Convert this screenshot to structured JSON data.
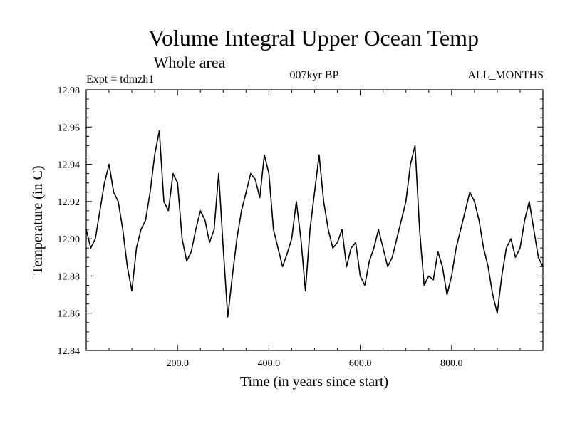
{
  "chart_data": {
    "type": "line",
    "title": "Volume Integral Upper Ocean Temp",
    "subtitle": "Whole area",
    "header_left": "Expt = tdmzh1",
    "header_center": "007kyr BP",
    "header_right": "ALL_MONTHS",
    "xlabel": "Time (in years since start)",
    "ylabel": "Temperature (in C)",
    "xlim": [
      0,
      1000
    ],
    "ylim": [
      12.84,
      12.98
    ],
    "x_ticks": [
      {
        "value": 200,
        "label": "200.0"
      },
      {
        "value": 400,
        "label": "400.0"
      },
      {
        "value": 600,
        "label": "600.0"
      },
      {
        "value": 800,
        "label": "800.0"
      }
    ],
    "y_ticks": [
      {
        "value": 12.84,
        "label": "12.84"
      },
      {
        "value": 12.86,
        "label": "12.86"
      },
      {
        "value": 12.88,
        "label": "12.88"
      },
      {
        "value": 12.9,
        "label": "12.90"
      },
      {
        "value": 12.92,
        "label": "12.92"
      },
      {
        "value": 12.94,
        "label": "12.94"
      },
      {
        "value": 12.96,
        "label": "12.96"
      },
      {
        "value": 12.98,
        "label": "12.98"
      }
    ],
    "grid": false,
    "series": [
      {
        "name": "Temperature",
        "color": "#000000",
        "x": [
          0,
          10,
          20,
          30,
          40,
          50,
          60,
          70,
          80,
          90,
          100,
          110,
          120,
          130,
          140,
          150,
          160,
          170,
          180,
          190,
          200,
          210,
          220,
          230,
          240,
          250,
          260,
          270,
          280,
          290,
          300,
          310,
          320,
          330,
          340,
          350,
          360,
          370,
          380,
          390,
          400,
          410,
          420,
          430,
          440,
          450,
          460,
          470,
          480,
          490,
          500,
          510,
          520,
          530,
          540,
          550,
          560,
          570,
          580,
          590,
          600,
          610,
          620,
          630,
          640,
          650,
          660,
          670,
          680,
          690,
          700,
          710,
          720,
          730,
          740,
          750,
          760,
          770,
          780,
          790,
          800,
          810,
          820,
          830,
          840,
          850,
          860,
          870,
          880,
          890,
          900,
          910,
          920,
          930,
          940,
          950,
          960,
          970,
          980,
          990,
          1000
        ],
        "values": [
          12.905,
          12.895,
          12.9,
          12.915,
          12.93,
          12.94,
          12.925,
          12.92,
          12.905,
          12.885,
          12.872,
          12.895,
          12.905,
          12.91,
          12.925,
          12.945,
          12.958,
          12.92,
          12.915,
          12.935,
          12.93,
          12.9,
          12.888,
          12.893,
          12.905,
          12.915,
          12.91,
          12.898,
          12.905,
          12.935,
          12.895,
          12.858,
          12.88,
          12.9,
          12.915,
          12.925,
          12.935,
          12.932,
          12.922,
          12.945,
          12.935,
          12.905,
          12.895,
          12.885,
          12.892,
          12.9,
          12.92,
          12.9,
          12.872,
          12.905,
          12.925,
          12.945,
          12.92,
          12.905,
          12.895,
          12.898,
          12.905,
          12.885,
          12.895,
          12.898,
          12.88,
          12.875,
          12.888,
          12.895,
          12.905,
          12.895,
          12.885,
          12.89,
          12.9,
          12.91,
          12.92,
          12.94,
          12.95,
          12.905,
          12.875,
          12.88,
          12.878,
          12.893,
          12.885,
          12.87,
          12.88,
          12.895,
          12.905,
          12.915,
          12.925,
          12.92,
          12.91,
          12.895,
          12.885,
          12.87,
          12.86,
          12.88,
          12.895,
          12.9,
          12.89,
          12.895,
          12.91,
          12.92,
          12.905,
          12.89,
          12.885
        ]
      }
    ]
  }
}
